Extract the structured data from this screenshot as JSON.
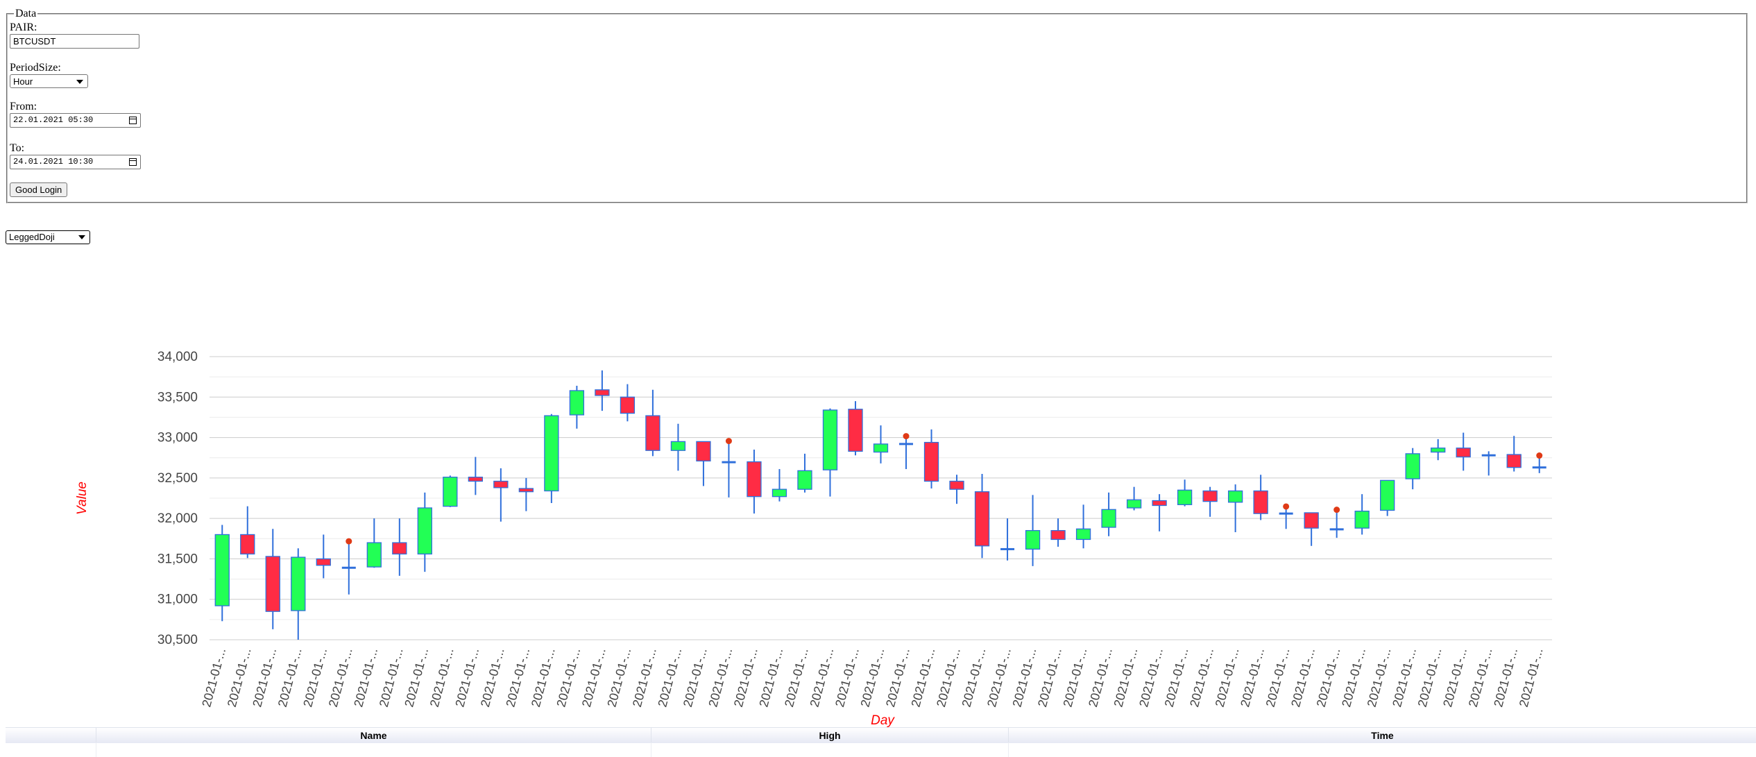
{
  "form": {
    "legend": "Data",
    "pair_label": "PAIR:",
    "pair_value": "BTCUSDT",
    "period_label": "PeriodSize:",
    "period_value": "Hour",
    "from_label": "From:",
    "from_value": "22.01.2021 05:30",
    "to_label": "To:",
    "to_value": "24.01.2021 10:30",
    "submit_label": "Good Login"
  },
  "pattern_select": {
    "value": "LeggedDoji"
  },
  "grid": {
    "columns": [
      "Name",
      "High",
      "Time"
    ]
  },
  "colors": {
    "bullish": "#22ff55",
    "bearish": "#ff2c44",
    "wick": "#2f6fdb",
    "marker": "#e03a16",
    "axis_title": "#ff0000"
  },
  "chart_data": {
    "type": "candlestick",
    "xlabel": "Day",
    "ylabel": "Value",
    "ylim": [
      30500,
      34000
    ],
    "yticks": [
      30500,
      31000,
      31500,
      32000,
      32500,
      33000,
      33500,
      34000
    ],
    "x_tick_label": "2021-01-...",
    "grid": true,
    "marker_note": "red dots mark detected LeggedDoji candles",
    "candles": [
      {
        "o": 30920,
        "h": 31920,
        "l": 30730,
        "c": 31800
      },
      {
        "o": 31800,
        "h": 32150,
        "l": 31510,
        "c": 31560
      },
      {
        "o": 31530,
        "h": 31870,
        "l": 30630,
        "c": 30850
      },
      {
        "o": 30860,
        "h": 31630,
        "l": 30500,
        "c": 31520
      },
      {
        "o": 31500,
        "h": 31800,
        "l": 31260,
        "c": 31420
      },
      {
        "o": 31380,
        "h": 31700,
        "l": 31060,
        "c": 31400,
        "doji": true
      },
      {
        "o": 31400,
        "h": 32000,
        "l": 31390,
        "c": 31700
      },
      {
        "o": 31700,
        "h": 32000,
        "l": 31290,
        "c": 31560
      },
      {
        "o": 31560,
        "h": 32320,
        "l": 31340,
        "c": 32130
      },
      {
        "o": 32150,
        "h": 32530,
        "l": 32140,
        "c": 32510
      },
      {
        "o": 32510,
        "h": 32760,
        "l": 32290,
        "c": 32460
      },
      {
        "o": 32460,
        "h": 32620,
        "l": 31960,
        "c": 32380
      },
      {
        "o": 32370,
        "h": 32500,
        "l": 32090,
        "c": 32330
      },
      {
        "o": 32340,
        "h": 33290,
        "l": 32190,
        "c": 33270
      },
      {
        "o": 33280,
        "h": 33640,
        "l": 33110,
        "c": 33580
      },
      {
        "o": 33590,
        "h": 33830,
        "l": 33330,
        "c": 33520
      },
      {
        "o": 33500,
        "h": 33660,
        "l": 33200,
        "c": 33300
      },
      {
        "o": 33270,
        "h": 33590,
        "l": 32770,
        "c": 32840
      },
      {
        "o": 32840,
        "h": 33170,
        "l": 32590,
        "c": 32950
      },
      {
        "o": 32950,
        "h": 32950,
        "l": 32400,
        "c": 32710
      },
      {
        "o": 32700,
        "h": 32940,
        "l": 32260,
        "c": 32690,
        "doji": true
      },
      {
        "o": 32700,
        "h": 32850,
        "l": 32060,
        "c": 32270
      },
      {
        "o": 32270,
        "h": 32610,
        "l": 32210,
        "c": 32360
      },
      {
        "o": 32360,
        "h": 32800,
        "l": 32320,
        "c": 32590
      },
      {
        "o": 32600,
        "h": 33360,
        "l": 32270,
        "c": 33340
      },
      {
        "o": 33350,
        "h": 33450,
        "l": 32780,
        "c": 32830
      },
      {
        "o": 32820,
        "h": 33150,
        "l": 32680,
        "c": 32920
      },
      {
        "o": 32930,
        "h": 33000,
        "l": 32610,
        "c": 32910,
        "doji": true
      },
      {
        "o": 32940,
        "h": 33100,
        "l": 32370,
        "c": 32460
      },
      {
        "o": 32460,
        "h": 32540,
        "l": 32180,
        "c": 32360
      },
      {
        "o": 32330,
        "h": 32550,
        "l": 31510,
        "c": 31660
      },
      {
        "o": 31620,
        "h": 32000,
        "l": 31480,
        "c": 31620
      },
      {
        "o": 31620,
        "h": 32290,
        "l": 31410,
        "c": 31850
      },
      {
        "o": 31850,
        "h": 32000,
        "l": 31650,
        "c": 31740
      },
      {
        "o": 31740,
        "h": 32170,
        "l": 31630,
        "c": 31870
      },
      {
        "o": 31890,
        "h": 32320,
        "l": 31780,
        "c": 32110
      },
      {
        "o": 32130,
        "h": 32390,
        "l": 32100,
        "c": 32230
      },
      {
        "o": 32220,
        "h": 32300,
        "l": 31840,
        "c": 32160
      },
      {
        "o": 32170,
        "h": 32480,
        "l": 32150,
        "c": 32350
      },
      {
        "o": 32340,
        "h": 32390,
        "l": 32020,
        "c": 32210
      },
      {
        "o": 32200,
        "h": 32420,
        "l": 31830,
        "c": 32340
      },
      {
        "o": 32340,
        "h": 32540,
        "l": 31980,
        "c": 32060
      },
      {
        "o": 32060,
        "h": 32130,
        "l": 31870,
        "c": 32060,
        "doji": true
      },
      {
        "o": 32070,
        "h": 32070,
        "l": 31660,
        "c": 31880
      },
      {
        "o": 31860,
        "h": 32090,
        "l": 31760,
        "c": 31870,
        "doji": true
      },
      {
        "o": 31880,
        "h": 32300,
        "l": 31800,
        "c": 32090
      },
      {
        "o": 32100,
        "h": 32470,
        "l": 32030,
        "c": 32470
      },
      {
        "o": 32490,
        "h": 32870,
        "l": 32360,
        "c": 32800
      },
      {
        "o": 32820,
        "h": 32980,
        "l": 32720,
        "c": 32870
      },
      {
        "o": 32870,
        "h": 33060,
        "l": 32590,
        "c": 32760
      },
      {
        "o": 32780,
        "h": 32830,
        "l": 32530,
        "c": 32780
      },
      {
        "o": 32790,
        "h": 33020,
        "l": 32580,
        "c": 32630
      },
      {
        "o": 32620,
        "h": 32760,
        "l": 32560,
        "c": 32640,
        "doji": true
      }
    ]
  }
}
